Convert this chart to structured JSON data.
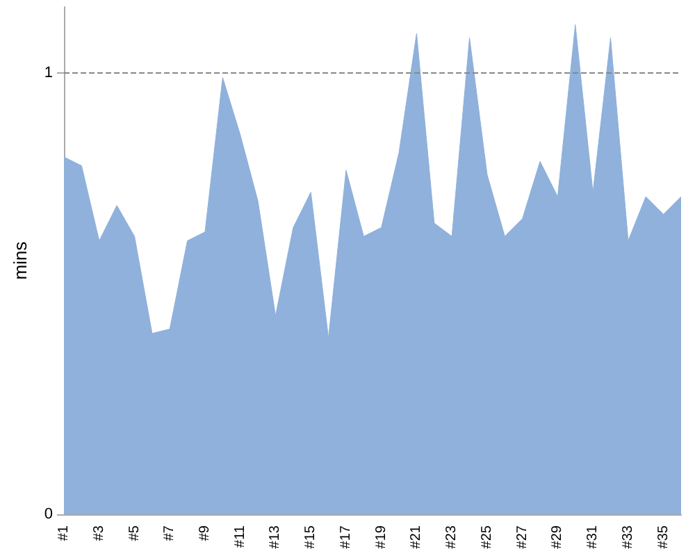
{
  "chart_data": {
    "type": "area",
    "ylabel": "mins",
    "categories": [
      "#1",
      null,
      "#3",
      null,
      "#5",
      null,
      "#7",
      null,
      "#9",
      null,
      "#11",
      null,
      "#13",
      null,
      "#15",
      null,
      "#17",
      null,
      "#19",
      null,
      "#21",
      null,
      "#23",
      null,
      "#25",
      null,
      "#27",
      null,
      "#29",
      null,
      "#31",
      null,
      "#33",
      null,
      "#35",
      null
    ],
    "series": [
      {
        "color": "#8fb1db",
        "values": [
          0.81,
          0.79,
          0.62,
          0.7,
          0.63,
          0.41,
          0.42,
          0.62,
          0.64,
          0.99,
          0.86,
          0.71,
          0.45,
          0.65,
          0.73,
          0.4,
          0.78,
          0.63,
          0.65,
          0.82,
          1.09,
          0.66,
          0.63,
          1.08,
          0.77,
          0.63,
          0.67,
          0.8,
          0.72,
          1.11,
          0.73,
          1.08,
          0.62,
          0.72,
          0.68,
          0.72
        ]
      }
    ],
    "ylim": [
      0,
      1.15
    ],
    "yticks": [
      0,
      1
    ],
    "ref_lines": [
      {
        "axis": "y",
        "value": 1,
        "color": "#888888",
        "line_style": "dashed"
      }
    ],
    "grid": false,
    "marker": "none"
  }
}
